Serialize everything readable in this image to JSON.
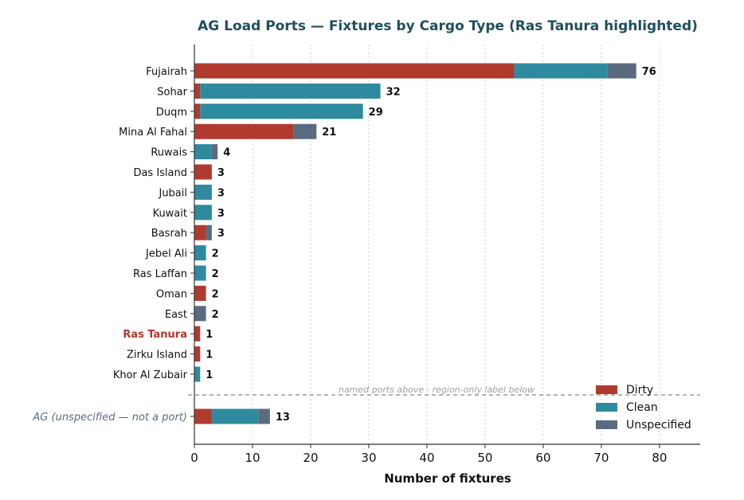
{
  "chart_data": {
    "type": "bar",
    "orientation": "horizontal",
    "stacked": true,
    "title": "AG Load Ports — Fixtures by Cargo Type (Ras Tanura highlighted)",
    "xlabel": "Number of fixtures",
    "ylabel": "",
    "xlim": [
      0,
      87
    ],
    "xticks": [
      0,
      10,
      20,
      30,
      40,
      50,
      60,
      70,
      80
    ],
    "grid": "vertical dotted",
    "legend_position": "bottom-right",
    "highlight": "Ras Tanura",
    "highlight_color": "#b03a2e",
    "categories": [
      "Fujairah",
      "Sohar",
      "Duqm",
      "Mina Al Fahal",
      "Ruwais",
      "Das Island",
      "Jubail",
      "Kuwait",
      "Basrah",
      "Jebel Ali",
      "Ras Laffan",
      "Oman",
      "East",
      "Ras Tanura",
      "Zirku Island",
      "Khor Al Zubair",
      "AG (unspecified — not a port)"
    ],
    "separator_index": 16,
    "separator_text": "named ports above  ·  region-only label below",
    "series": [
      {
        "name": "Dirty",
        "color": "#b03a2e",
        "values": [
          55,
          1,
          1,
          17,
          0,
          3,
          0,
          0,
          2,
          0,
          0,
          2,
          0,
          1,
          1,
          0,
          3
        ]
      },
      {
        "name": "Clean",
        "color": "#2e8a9e",
        "values": [
          16,
          31,
          28,
          0,
          3,
          0,
          3,
          3,
          0,
          2,
          2,
          0,
          0,
          0,
          0,
          1,
          8
        ]
      },
      {
        "name": "Unspecified",
        "color": "#5a6b80",
        "values": [
          5,
          0,
          0,
          4,
          1,
          0,
          0,
          0,
          1,
          0,
          0,
          0,
          2,
          0,
          0,
          0,
          2
        ]
      }
    ],
    "totals": [
      76,
      32,
      29,
      21,
      4,
      3,
      3,
      3,
      3,
      2,
      2,
      2,
      2,
      1,
      1,
      1,
      13
    ]
  }
}
